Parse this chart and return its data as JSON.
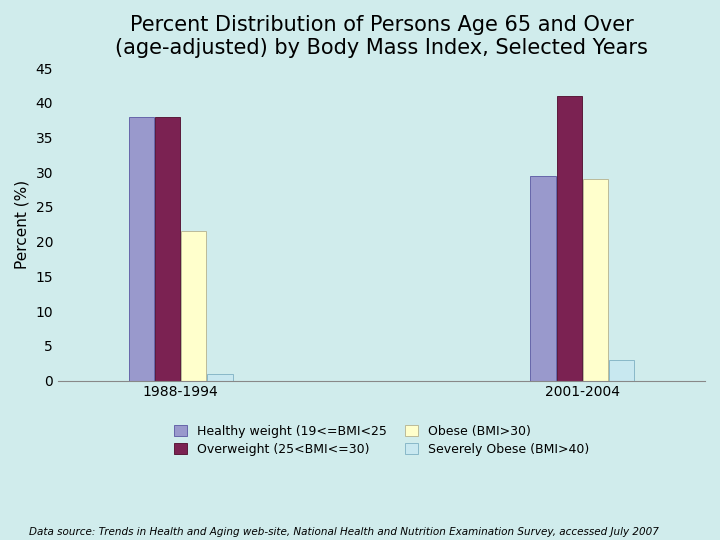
{
  "title": "Percent Distribution of Persons Age 65 and Over\n(age-adjusted) by Body Mass Index, Selected Years",
  "ylabel": "Percent (%)",
  "groups": [
    "1988-1994",
    "2001-2004"
  ],
  "categories": [
    "Healthy weight (19<=BMI<25",
    "Overweight (25<BMI<=30)",
    "Obese (BMI>30)",
    "Severely Obese (BMI>40)"
  ],
  "values": {
    "1988-1994": [
      38,
      38,
      21.5,
      1.0
    ],
    "2001-2004": [
      29.5,
      41,
      29,
      3
    ]
  },
  "bar_colors": [
    "#9999cc",
    "#7b2252",
    "#ffffcc",
    "#c8e8f0"
  ],
  "bar_edge_colors": [
    "#6666aa",
    "#5a1a3a",
    "#bbbb99",
    "#88b8c8"
  ],
  "ylim": [
    0,
    45
  ],
  "yticks": [
    0,
    5,
    10,
    15,
    20,
    25,
    30,
    35,
    40,
    45
  ],
  "background_color": "#d0ecec",
  "title_fontsize": 15,
  "axis_fontsize": 11,
  "tick_fontsize": 10,
  "legend_fontsize": 9,
  "source_text": "Data source: Trends in Health and Aging web-site, National Health and Nutrition Examination Survey, accessed July 2007",
  "bar_width": 0.12,
  "group_positions": [
    1.0,
    3.0
  ]
}
